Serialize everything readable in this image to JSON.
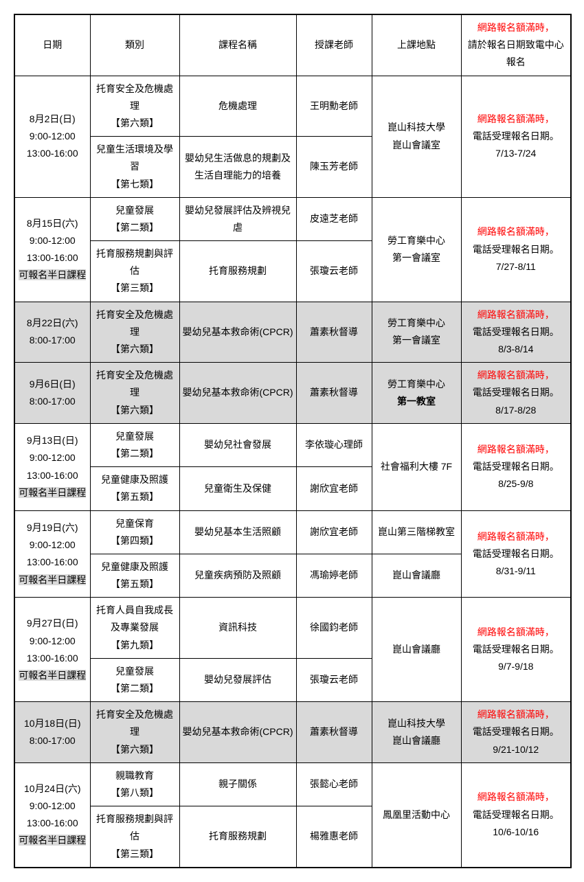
{
  "header": {
    "date": "日期",
    "category": "類別",
    "course": "課程名稱",
    "teacher": "授課老師",
    "location": "上課地點",
    "note_red": "網路報名額滿時，",
    "note_black": "請於報名日期致電中心報名"
  },
  "rows": [
    {
      "date_lines": [
        "8月2日(日)",
        "9:00-12:00",
        "13:00-16:00"
      ],
      "date_highlight_last": false,
      "sub": [
        {
          "category": "托育安全及危機處理\n【第六類】",
          "course": "危機處理",
          "teacher": "王明勳老師"
        },
        {
          "category": "兒童生活環境及學習\n【第七類】",
          "course": "嬰幼兒生活做息的規劃及生活自理能力的培養",
          "teacher": "陳玉芳老師"
        }
      ],
      "location": "崑山科技大學\n崑山會議室",
      "note_red": "網路報名額滿時，",
      "note_black1": "電話受理報名日期。",
      "note_black2": "7/13-7/24",
      "gray": false
    },
    {
      "date_lines": [
        "8月15日(六)",
        "9:00-12:00",
        "13:00-16:00",
        "可報名半日課程"
      ],
      "date_highlight_last": true,
      "sub": [
        {
          "category": "兒童發展\n【第二類】",
          "course": "嬰幼兒發展評估及辨視兒虐",
          "teacher": "皮遠芝老師"
        },
        {
          "category": "托育服務規劃與評估\n【第三類】",
          "course": "托育服務規劃",
          "teacher": "張瓊云老師"
        }
      ],
      "location": "勞工育樂中心\n第一會議室",
      "note_red": "網路報名額滿時，",
      "note_black1": "電話受理報名日期。",
      "note_black2": "7/27-8/11",
      "gray": false
    },
    {
      "date_lines": [
        "8月22日(六)",
        "8:00-17:00"
      ],
      "date_highlight_last": false,
      "sub": [
        {
          "category": "托育安全及危機處理\n【第六類】",
          "course": "嬰幼兒基本救命術(CPCR)",
          "teacher": "蕭素秋督導"
        }
      ],
      "location": "勞工育樂中心\n第一會議室",
      "note_red": "網路報名額滿時，",
      "note_black1": "電話受理報名日期。",
      "note_black2": "8/3-8/14",
      "gray": true
    },
    {
      "date_lines": [
        "9月6日(日)",
        "8:00-17:00"
      ],
      "date_highlight_last": false,
      "sub": [
        {
          "category": "托育安全及危機處理\n【第六類】",
          "course": "嬰幼兒基本救命術(CPCR)",
          "teacher": "蕭素秋督導"
        }
      ],
      "location": "勞工育樂中心",
      "location_bold": "第一教室",
      "note_red": "網路報名額滿時，",
      "note_black1": "電話受理報名日期。",
      "note_black2": "8/17-8/28",
      "gray": true
    },
    {
      "date_lines": [
        "9月13日(日)",
        "9:00-12:00",
        "13:00-16:00",
        "可報名半日課程"
      ],
      "date_highlight_last": true,
      "sub": [
        {
          "category": "兒童發展\n【第二類】",
          "course": "嬰幼兒社會發展",
          "teacher": "李依璇心理師"
        },
        {
          "category": "兒童健康及照護\n【第五類】",
          "course": "兒童衛生及保健",
          "teacher": "謝欣宜老師"
        }
      ],
      "location": "社會福利大樓 7F",
      "note_red": "網路報名額滿時，",
      "note_black1": "電話受理報名日期。",
      "note_black2": "8/25-9/8",
      "gray": false
    },
    {
      "date_lines": [
        "9月19日(六)",
        "9:00-12:00",
        "13:00-16:00",
        "可報名半日課程"
      ],
      "date_highlight_last": true,
      "sub": [
        {
          "category": "兒童保育\n【第四類】",
          "course": "嬰幼兒基本生活照顧",
          "teacher": "謝欣宜老師",
          "loc": "崑山第三階梯教室"
        },
        {
          "category": "兒童健康及照護\n【第五類】",
          "course": "兒童疾病預防及照顧",
          "teacher": "馮瑜婷老師",
          "loc": "崑山會議廳"
        }
      ],
      "location_split": true,
      "note_red": "網路報名額滿時，",
      "note_black1": "電話受理報名日期。",
      "note_black2": "8/31-9/11",
      "gray": false
    },
    {
      "date_lines": [
        "9月27日(日)",
        "9:00-12:00",
        "13:00-16:00",
        "可報名半日課程"
      ],
      "date_highlight_last": true,
      "sub": [
        {
          "category": "托育人員自我成長及專業發展\n【第九類】",
          "course": "資訊科技",
          "teacher": "徐國鈞老師"
        },
        {
          "category": "兒童發展\n【第二類】",
          "course": "嬰幼兒發展評估",
          "teacher": "張瓊云老師"
        }
      ],
      "location": "崑山會議廳",
      "note_red": "網路報名額滿時，",
      "note_black1": "電話受理報名日期。",
      "note_black2": "9/7-9/18",
      "gray": false
    },
    {
      "date_lines": [
        "10月18日(日)",
        "8:00-17:00"
      ],
      "date_highlight_last": false,
      "sub": [
        {
          "category": "托育安全及危機處理\n【第六類】",
          "course": "嬰幼兒基本救命術(CPCR)",
          "teacher": "蕭素秋督導"
        }
      ],
      "location": "崑山科技大學\n崑山會議廳",
      "note_red": "網路報名額滿時，",
      "note_black1": "電話受理報名日期。",
      "note_black2": "9/21-10/12",
      "gray": true
    },
    {
      "date_lines": [
        "10月24日(六)",
        "9:00-12:00",
        "13:00-16:00",
        "可報名半日課程"
      ],
      "date_highlight_last": true,
      "sub": [
        {
          "category": "親職教育\n【第八類】",
          "course": "親子關係",
          "teacher": "張懿心老師"
        },
        {
          "category": "托育服務規劃與評估\n【第三類】",
          "course": "托育服務規劃",
          "teacher": "楊雅惠老師"
        }
      ],
      "location": "鳳凰里活動中心",
      "note_red": "網路報名額滿時，",
      "note_black1": "電話受理報名日期。",
      "note_black2": "10/6-10/16",
      "gray": false
    }
  ]
}
